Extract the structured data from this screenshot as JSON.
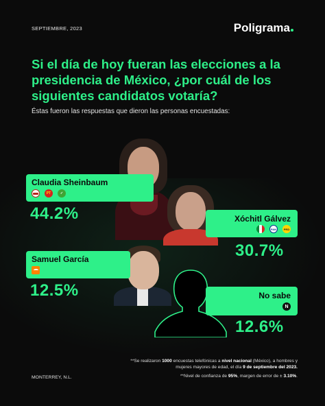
{
  "header": {
    "date": "SEPTIEMBRE, 2023",
    "brand": "Poligrama"
  },
  "question": "Si el día de hoy fueran las elecciones a la presidencia de México, ¿por cuál de los siguientes candidatos votaría?",
  "subtitle": "Éstas fueron las respuestas que dieron las personas encuestadas:",
  "candidates": [
    {
      "name": "Claudia Sheinbaum",
      "percent": "44.2%",
      "parties": [
        "morena-logo",
        "pt-logo",
        "verde-logo"
      ]
    },
    {
      "name": "Xóchitl Gálvez",
      "percent": "30.7%",
      "parties": [
        "pri-logo",
        "pan-logo",
        "prd-logo"
      ]
    },
    {
      "name": "Samuel García",
      "percent": "12.5%",
      "parties": [
        "mc-logo"
      ]
    },
    {
      "name": "No sabe",
      "percent": "12.6%",
      "badge": "N"
    }
  ],
  "footer": {
    "note_1a": "**Se realizaron ",
    "note_1b": "1000",
    "note_1c": " encuestas telefónicas a ",
    "note_1d": "nivel nacional",
    "note_1e": " (México), a hombres y mujeres mayores de edad, el día ",
    "note_1f": "9 de septiembre del 2023.",
    "note_2a": "**Nivel de confianza de ",
    "note_2b": "95%",
    "note_2c": ", margen de error de ± ",
    "note_2d": "3.10%",
    "note_2e": ".",
    "city": "MONTERREY, N.L."
  },
  "colors": {
    "accent": "#2ef089",
    "background": "#0b0b0b"
  }
}
